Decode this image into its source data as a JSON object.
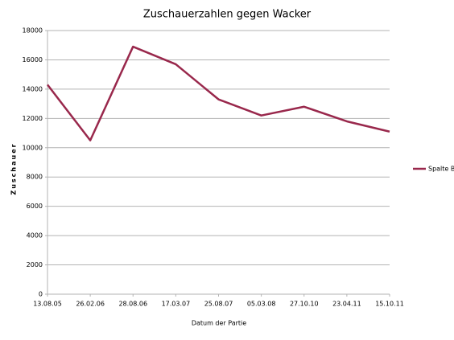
{
  "chart_data": {
    "type": "line",
    "title": "Zuschauerzahlen gegen Wacker",
    "x_label": "Datum der Partie",
    "y_label": "Zuschauer",
    "categories": [
      "13.08.05",
      "26.02.06",
      "28.08.06",
      "17.03.07",
      "25.08.07",
      "05.03.08",
      "27.10.10",
      "23.04.11",
      "15.10.11"
    ],
    "series": [
      {
        "name": "Spalte B",
        "color": "#99284c",
        "values": [
          14300,
          10500,
          16900,
          15700,
          13300,
          12200,
          12800,
          11800,
          11100
        ]
      }
    ],
    "ylim": [
      0,
      18000
    ],
    "yticks": [
      0,
      2000,
      4000,
      6000,
      8000,
      10000,
      12000,
      14000,
      16000,
      18000
    ],
    "grid": true,
    "legend": "right"
  }
}
